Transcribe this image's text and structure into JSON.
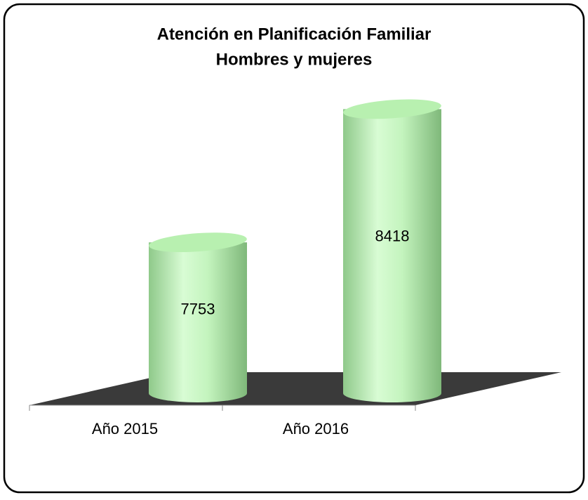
{
  "chart_data": {
    "type": "bar",
    "title": "Atención en Planificación Familiar",
    "subtitle": "Hombres y mujeres",
    "categories": [
      "Año 2015",
      "Año 2016"
    ],
    "values": [
      7753,
      8418
    ],
    "color": "#b8f0b0",
    "ylim": [
      7000,
      8500
    ]
  }
}
